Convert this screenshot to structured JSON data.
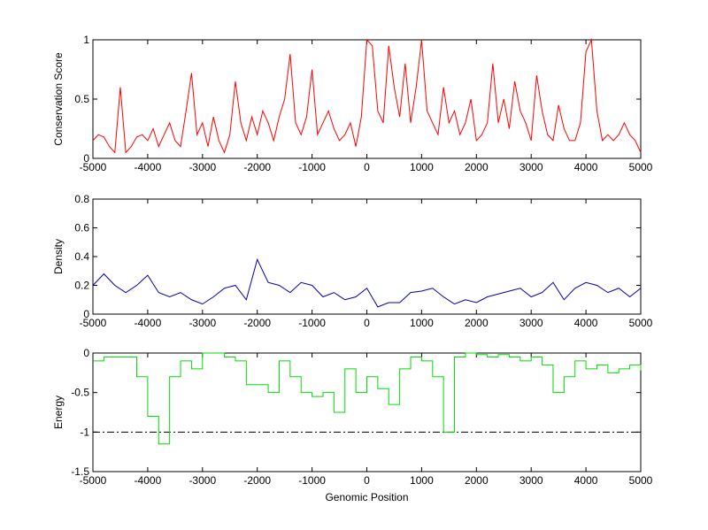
{
  "chart_data": [
    {
      "type": "line",
      "ylabel": "Conservation Score",
      "color": "#ff0000",
      "step": false,
      "xlim": [
        -5000,
        5000
      ],
      "ylim": [
        0,
        1
      ],
      "xticks": [
        -5000,
        -4000,
        -3000,
        -2000,
        -1000,
        0,
        1000,
        2000,
        3000,
        4000,
        5000
      ],
      "yticks": [
        0,
        0.5,
        1
      ],
      "x": [
        -5000,
        -4900,
        -4800,
        -4700,
        -4600,
        -4500,
        -4400,
        -4300,
        -4200,
        -4100,
        -4000,
        -3900,
        -3800,
        -3700,
        -3600,
        -3500,
        -3400,
        -3300,
        -3200,
        -3100,
        -3000,
        -2900,
        -2800,
        -2700,
        -2600,
        -2500,
        -2400,
        -2300,
        -2200,
        -2100,
        -2000,
        -1900,
        -1800,
        -1700,
        -1600,
        -1500,
        -1400,
        -1300,
        -1200,
        -1100,
        -1000,
        -900,
        -800,
        -700,
        -600,
        -500,
        -400,
        -300,
        -200,
        -100,
        0,
        100,
        200,
        300,
        400,
        500,
        600,
        700,
        800,
        900,
        1000,
        1100,
        1200,
        1300,
        1400,
        1500,
        1600,
        1700,
        1800,
        1900,
        2000,
        2100,
        2200,
        2300,
        2400,
        2500,
        2600,
        2700,
        2800,
        2900,
        3000,
        3100,
        3200,
        3300,
        3400,
        3500,
        3600,
        3700,
        3800,
        3900,
        4000,
        4100,
        4200,
        4300,
        4400,
        4500,
        4600,
        4700,
        4800,
        4900,
        5000
      ],
      "values": [
        0.15,
        0.2,
        0.18,
        0.1,
        0.05,
        0.6,
        0.05,
        0.1,
        0.18,
        0.2,
        0.15,
        0.25,
        0.1,
        0.2,
        0.3,
        0.15,
        0.1,
        0.4,
        0.72,
        0.2,
        0.3,
        0.1,
        0.35,
        0.15,
        0.05,
        0.2,
        0.65,
        0.3,
        0.15,
        0.35,
        0.2,
        0.4,
        0.3,
        0.15,
        0.35,
        0.5,
        0.88,
        0.3,
        0.2,
        0.35,
        0.75,
        0.2,
        0.3,
        0.4,
        0.25,
        0.15,
        0.2,
        0.3,
        0.1,
        0.35,
        1,
        0.95,
        0.4,
        0.3,
        0.95,
        0.6,
        0.35,
        0.8,
        0.3,
        0.6,
        1,
        0.4,
        0.3,
        0.2,
        0.6,
        0.3,
        0.4,
        0.2,
        0.3,
        0.5,
        0.15,
        0.2,
        0.3,
        0.8,
        0.3,
        0.5,
        0.25,
        0.65,
        0.4,
        0.3,
        0.15,
        0.7,
        0.4,
        0.2,
        0.15,
        0.45,
        0.25,
        0.15,
        0.15,
        0.3,
        0.9,
        1,
        0.4,
        0.15,
        0.2,
        0.15,
        0.2,
        0.3,
        0.2,
        0.15,
        0.05
      ]
    },
    {
      "type": "line",
      "ylabel": "Density",
      "color": "#0000aa",
      "step": false,
      "xlim": [
        -5000,
        5000
      ],
      "ylim": [
        0,
        0.8
      ],
      "xticks": [
        -5000,
        -4000,
        -3000,
        -2000,
        -1000,
        0,
        1000,
        2000,
        3000,
        4000,
        5000
      ],
      "yticks": [
        0,
        0.2,
        0.4,
        0.6,
        0.8
      ],
      "x": [
        -5000,
        -4800,
        -4600,
        -4400,
        -4200,
        -4000,
        -3800,
        -3600,
        -3400,
        -3200,
        -3000,
        -2800,
        -2600,
        -2400,
        -2200,
        -2000,
        -1800,
        -1600,
        -1400,
        -1200,
        -1000,
        -800,
        -600,
        -400,
        -200,
        0,
        200,
        400,
        600,
        800,
        1000,
        1200,
        1400,
        1600,
        1800,
        2000,
        2200,
        2400,
        2600,
        2800,
        3000,
        3200,
        3400,
        3600,
        3800,
        4000,
        4200,
        4400,
        4600,
        4800,
        5000
      ],
      "values": [
        0.2,
        0.28,
        0.2,
        0.15,
        0.2,
        0.27,
        0.15,
        0.12,
        0.15,
        0.1,
        0.07,
        0.12,
        0.18,
        0.2,
        0.1,
        0.38,
        0.22,
        0.2,
        0.15,
        0.22,
        0.2,
        0.12,
        0.15,
        0.1,
        0.12,
        0.18,
        0.05,
        0.08,
        0.08,
        0.15,
        0.16,
        0.18,
        0.12,
        0.07,
        0.1,
        0.08,
        0.12,
        0.14,
        0.16,
        0.18,
        0.12,
        0.15,
        0.22,
        0.1,
        0.18,
        0.22,
        0.2,
        0.15,
        0.18,
        0.12,
        0.18
      ]
    },
    {
      "type": "line",
      "ylabel": "Energy",
      "xlabel": "Genomic Position",
      "color": "#00dd00",
      "step": true,
      "hline": -1,
      "xlim": [
        -5000,
        5000
      ],
      "ylim": [
        -1.5,
        0
      ],
      "xticks": [
        -5000,
        -4000,
        -3000,
        -2000,
        -1000,
        0,
        1000,
        2000,
        3000,
        4000,
        5000
      ],
      "yticks": [
        -1.5,
        -1,
        -0.5,
        0
      ],
      "x": [
        -5000,
        -4800,
        -4600,
        -4400,
        -4200,
        -4000,
        -3800,
        -3600,
        -3400,
        -3200,
        -3000,
        -2800,
        -2600,
        -2400,
        -2200,
        -2000,
        -1800,
        -1600,
        -1400,
        -1200,
        -1000,
        -800,
        -600,
        -400,
        -200,
        0,
        200,
        400,
        600,
        800,
        1000,
        1200,
        1400,
        1600,
        1800,
        2000,
        2200,
        2400,
        2600,
        2800,
        3000,
        3200,
        3400,
        3600,
        3800,
        4000,
        4200,
        4400,
        4600,
        4800,
        5000
      ],
      "values": [
        -0.1,
        -0.05,
        -0.05,
        -0.05,
        -0.3,
        -0.8,
        -1.15,
        -0.3,
        -0.1,
        -0.2,
        0,
        0,
        -0.05,
        -0.1,
        -0.4,
        -0.4,
        -0.5,
        -0.1,
        -0.3,
        -0.5,
        -0.55,
        -0.5,
        -0.75,
        -0.2,
        -0.5,
        -0.3,
        -0.45,
        -0.65,
        -0.2,
        -0.05,
        -0.1,
        -0.3,
        -1,
        -0.05,
        0,
        -0.02,
        -0.05,
        -0.02,
        -0.05,
        -0.1,
        -0.05,
        -0.15,
        -0.5,
        -0.3,
        -0.1,
        -0.2,
        -0.15,
        -0.25,
        -0.2,
        -0.15,
        -0.22
      ]
    }
  ]
}
